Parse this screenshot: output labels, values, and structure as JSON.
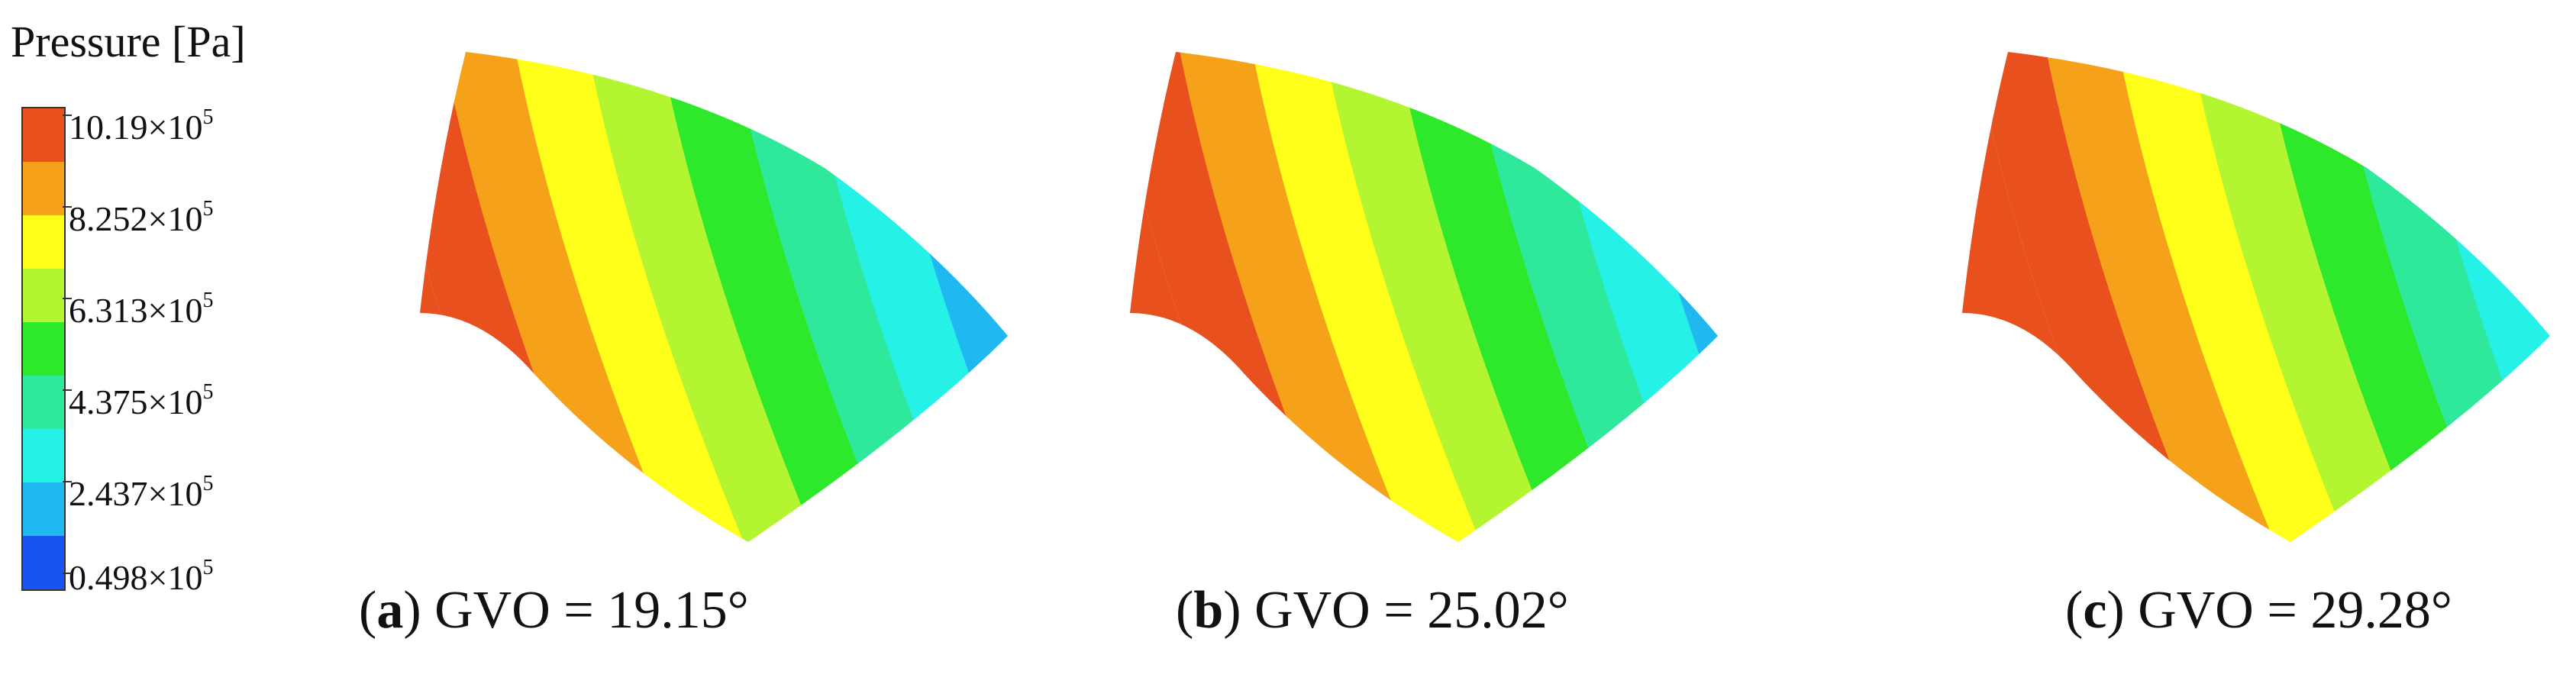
{
  "legend": {
    "title": "Pressure [Pa]",
    "ticks": [
      {
        "mantissa": "10.19",
        "exp": "5"
      },
      {
        "mantissa": "8.252",
        "exp": "5"
      },
      {
        "mantissa": "6.313",
        "exp": "5"
      },
      {
        "mantissa": "4.375",
        "exp": "5"
      },
      {
        "mantissa": "2.437",
        "exp": "5"
      },
      {
        "mantissa": "0.498",
        "exp": "5"
      }
    ],
    "times_sign": "×10",
    "colors": [
      "#e8501e",
      "#f5a21a",
      "#ffff1a",
      "#b4f531",
      "#2ee82b",
      "#2ee89c",
      "#26f1e6",
      "#1fb8f0",
      "#1a54f0"
    ]
  },
  "panels": [
    {
      "letter": "a",
      "label_open": "(",
      "label_close": ")",
      "text": " GVO = 19.15°"
    },
    {
      "letter": "b",
      "label_open": "(",
      "label_close": ")",
      "text": " GVO = 25.02°"
    },
    {
      "letter": "c",
      "label_open": "(",
      "label_close": ")",
      "text": " GVO = 29.28°"
    }
  ]
}
